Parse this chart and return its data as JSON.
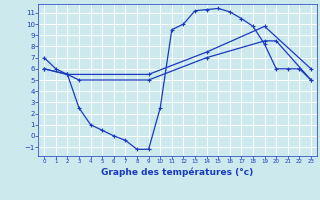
{
  "background_color": "#cce9ed",
  "grid_color": "#ffffff",
  "line_color": "#1a3abf",
  "xlabel": "Graphe des températures (°c)",
  "xlabel_fontsize": 6.5,
  "ylim": [
    -1.8,
    11.8
  ],
  "xlim": [
    -0.5,
    23.5
  ],
  "yticks": [
    -1,
    0,
    1,
    2,
    3,
    4,
    5,
    6,
    7,
    8,
    9,
    10,
    11
  ],
  "xticks": [
    0,
    1,
    2,
    3,
    4,
    5,
    6,
    7,
    8,
    9,
    10,
    11,
    12,
    13,
    14,
    15,
    16,
    17,
    18,
    19,
    20,
    21,
    22,
    23
  ],
  "series1_x": [
    0,
    1,
    2,
    3,
    4,
    5,
    6,
    7,
    8,
    9,
    10,
    11,
    12,
    13,
    14,
    15,
    16,
    17,
    18,
    19,
    20,
    21,
    22,
    23
  ],
  "series1_y": [
    7.0,
    6.0,
    5.5,
    2.5,
    1.0,
    0.5,
    0.0,
    -0.4,
    -1.2,
    -1.2,
    2.5,
    9.5,
    10.0,
    11.2,
    11.3,
    11.4,
    11.1,
    10.5,
    9.8,
    8.2,
    6.0,
    6.0,
    6.0,
    5.0
  ],
  "series2_x": [
    0,
    2,
    3,
    9,
    14,
    19,
    20,
    23
  ],
  "series2_y": [
    6.0,
    5.5,
    5.0,
    5.0,
    7.0,
    8.5,
    8.5,
    5.0
  ],
  "series3_x": [
    0,
    2,
    9,
    14,
    19,
    23
  ],
  "series3_y": [
    6.0,
    5.5,
    5.5,
    7.5,
    9.8,
    6.0
  ]
}
